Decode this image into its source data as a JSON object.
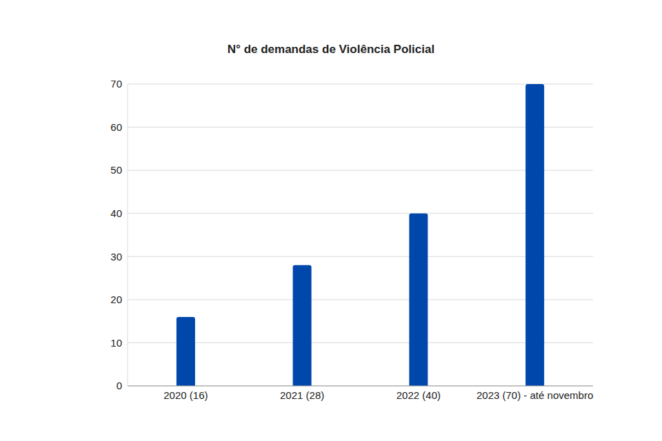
{
  "chart_data": {
    "type": "bar",
    "title": "N° de demandas de Violência Policial",
    "categories": [
      "2020 (16)",
      "2021 (28)",
      "2022 (40)",
      "2023 (70) - até novembro"
    ],
    "values": [
      16,
      28,
      40,
      70
    ],
    "color": "#0047ab",
    "ylim": [
      0,
      70
    ],
    "yticks": [
      0,
      10,
      20,
      30,
      40,
      50,
      60,
      70
    ],
    "grid": true
  }
}
